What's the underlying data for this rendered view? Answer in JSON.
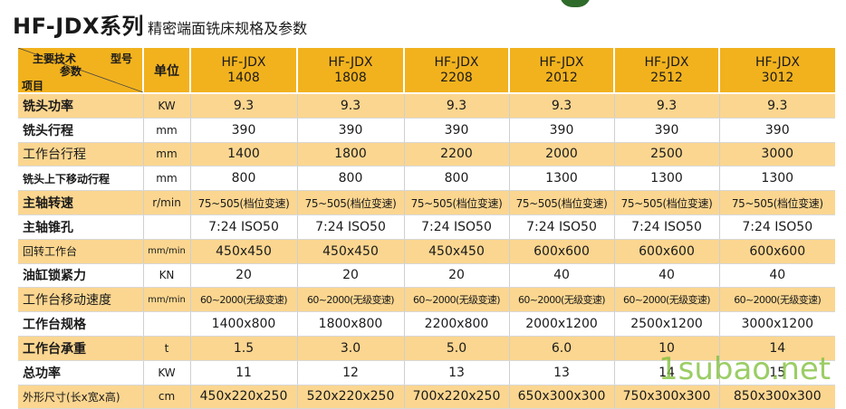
{
  "title": {
    "main": "HF-JDX系列",
    "sub": "精密端面铣床规格及参数"
  },
  "header": {
    "corner": {
      "label1": "主要技术",
      "label2": "型号",
      "label3": "参数",
      "label4": "项目"
    },
    "unit": "单位",
    "models": [
      {
        "line1": "HF-JDX",
        "line2": "1408"
      },
      {
        "line1": "HF-JDX",
        "line2": "1808"
      },
      {
        "line1": "HF-JDX",
        "line2": "2208"
      },
      {
        "line1": "HF-JDX",
        "line2": "2012"
      },
      {
        "line1": "HF-JDX",
        "line2": "2512"
      },
      {
        "line1": "HF-JDX",
        "line2": "3012"
      }
    ]
  },
  "rows": [
    {
      "item": "铣头功率",
      "unit": "KW",
      "values": [
        "9.3",
        "9.3",
        "9.3",
        "9.3",
        "9.3",
        "9.3"
      ]
    },
    {
      "item": "铣头行程",
      "unit": "mm",
      "values": [
        "390",
        "390",
        "390",
        "390",
        "390",
        "390"
      ]
    },
    {
      "item": "工作台行程",
      "unit": "mm",
      "values": [
        "1400",
        "1800",
        "2200",
        "2000",
        "2500",
        "3000"
      ]
    },
    {
      "item": "铣头上下移动行程",
      "unit": "mm",
      "values": [
        "800",
        "800",
        "800",
        "1300",
        "1300",
        "1300"
      ]
    },
    {
      "item": "主轴转速",
      "unit": "r/min",
      "values": [
        "75~505(档位变速)",
        "75~505(档位变速)",
        "75~505(档位变速)",
        "75~505(档位变速)",
        "75~505(档位变速)",
        "75~505(档位变速)"
      ]
    },
    {
      "item": "主轴锥孔",
      "unit": "",
      "values": [
        "7:24 ISO50",
        "7:24 ISO50",
        "7:24 ISO50",
        "7:24 ISO50",
        "7:24 ISO50",
        "7:24 ISO50"
      ]
    },
    {
      "item": "回转工作台",
      "unit": "mm/min",
      "values": [
        "450x450",
        "450x450",
        "450x450",
        "600x600",
        "600x600",
        "600x600"
      ]
    },
    {
      "item": "油缸锁紧力",
      "unit": "KN",
      "values": [
        "20",
        "20",
        "20",
        "40",
        "40",
        "40"
      ]
    },
    {
      "item": "工作台移动速度",
      "unit": "mm/min",
      "values": [
        "60~2000(无级变速)",
        "60~2000(无级变速)",
        "60~2000(无级变速)",
        "60~2000(无级变速)",
        "60~2000(无级变速)",
        "60~2000(无级变速)"
      ]
    },
    {
      "item": "工作台规格",
      "unit": "",
      "values": [
        "1400x800",
        "1800x800",
        "2200x800",
        "2000x1200",
        "2500x1200",
        "3000x1200"
      ]
    },
    {
      "item": "工作台承重",
      "unit": "t",
      "values": [
        "1.5",
        "3.0",
        "5.0",
        "6.0",
        "10",
        "14"
      ]
    },
    {
      "item": "总功率",
      "unit": "KW",
      "values": [
        "11",
        "12",
        "13",
        "13",
        "14",
        "15"
      ]
    },
    {
      "item": "外形尺寸(长x宽x高)",
      "unit": "cm",
      "values": [
        "450x220x250",
        "520x220x250",
        "700x220x250",
        "650x300x300",
        "750x300x300",
        "850x300x300"
      ]
    }
  ],
  "watermark": "1subao.net",
  "colors": {
    "header": "#f2b21e",
    "shade": "#fbd690",
    "watermark": "#7fbf3a"
  }
}
